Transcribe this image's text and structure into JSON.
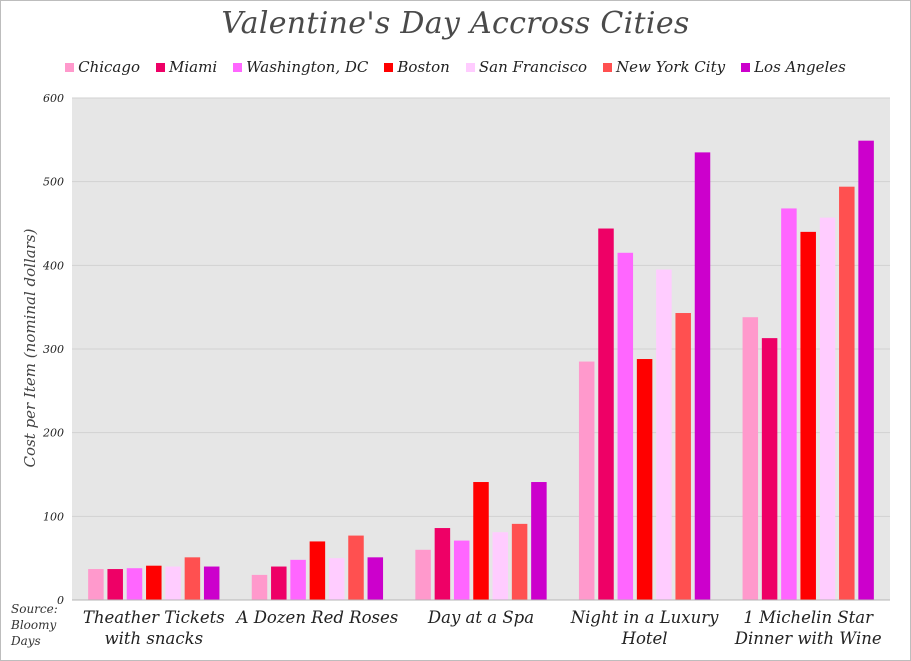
{
  "chart_data": {
    "type": "bar",
    "title": "Valentine's Day Accross Cities",
    "ylabel": "Cost per Item (nominal dollars)",
    "source": "Source: Bloomy Days",
    "categories": [
      "Theather Tickets with snacks",
      "A Dozen Red Roses",
      "Day at a Spa",
      "Night in a Luxury Hotel",
      "1 Michelin Star Dinner with Wine"
    ],
    "series": [
      {
        "name": "Chicago",
        "color": "#ff99cc",
        "values": [
          37,
          30,
          60,
          285,
          338
        ]
      },
      {
        "name": "Miami",
        "color": "#ee0066",
        "values": [
          37,
          40,
          86,
          444,
          313
        ]
      },
      {
        "name": "Washington, DC",
        "color": "#ff66ff",
        "values": [
          38,
          48,
          71,
          415,
          468
        ]
      },
      {
        "name": "Boston",
        "color": "#ff0000",
        "values": [
          41,
          70,
          141,
          288,
          440
        ]
      },
      {
        "name": "San Francisco",
        "color": "#ffccff",
        "values": [
          40,
          50,
          81,
          395,
          457
        ]
      },
      {
        "name": "New York City",
        "color": "#ff5050",
        "values": [
          51,
          77,
          91,
          343,
          494
        ]
      },
      {
        "name": "Los Angeles",
        "color": "#cc00cc",
        "values": [
          40,
          51,
          141,
          535,
          549
        ]
      }
    ],
    "ylim": [
      0,
      600
    ],
    "yticks": [
      0,
      100,
      200,
      300,
      400,
      500,
      600
    ],
    "grid": true,
    "legend_position": "top",
    "plot_background": "#e6e6e6"
  }
}
